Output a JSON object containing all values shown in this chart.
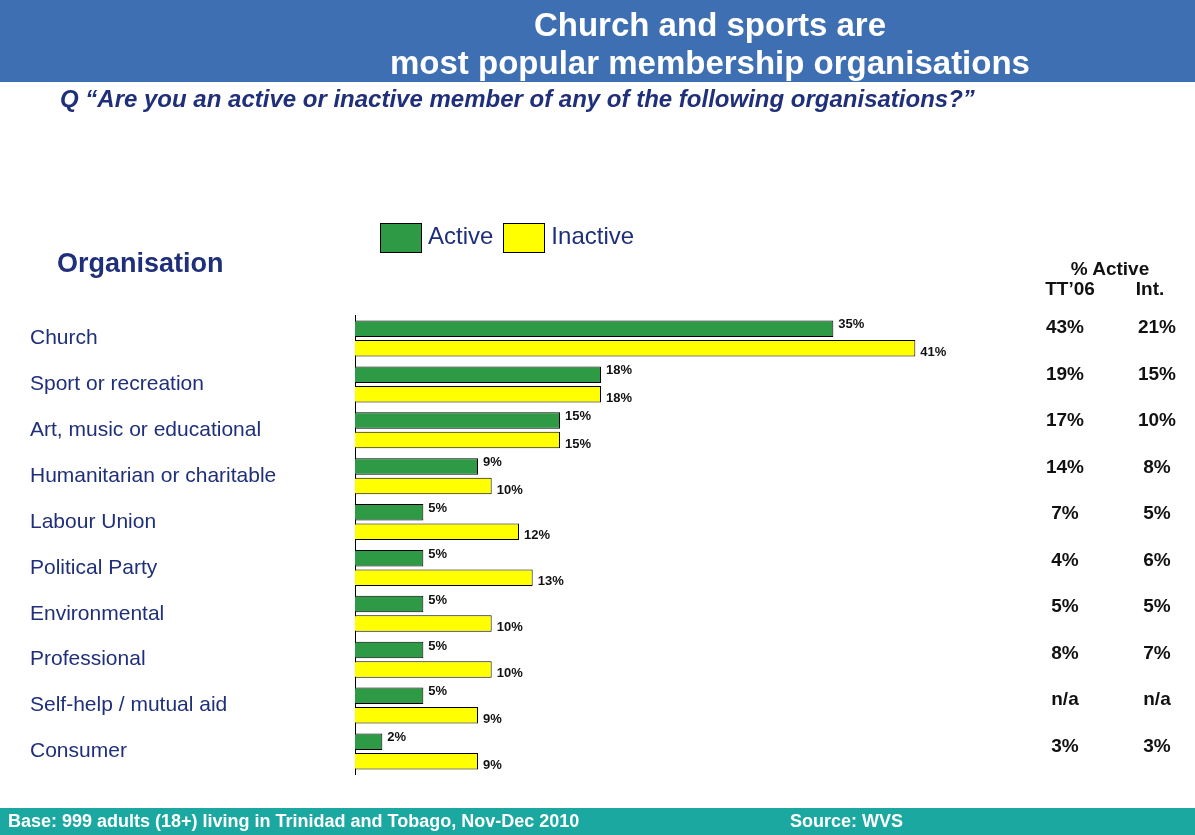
{
  "chart_data": {
    "type": "bar",
    "orientation": "horizontal",
    "title": "Church and sports are\nmost popular membership organisations",
    "subtitle": "Q   “Are you an active or inactive member of any of the following organisations?”",
    "ylabel": "Organisation",
    "categories": [
      "Church",
      "Sport or recreation",
      "Art, music or educational",
      "Humanitarian or charitable",
      "Labour Union",
      "Political Party",
      "Environmental",
      "Professional",
      "Self-help / mutual aid",
      "Consumer"
    ],
    "series": [
      {
        "name": "Active",
        "color": "#2e9a46",
        "values": [
          35,
          18,
          15,
          9,
          5,
          5,
          5,
          5,
          5,
          2
        ],
        "value_labels": [
          "35%",
          "18%",
          "15%",
          "9%",
          "5%",
          "5%",
          "5%",
          "5%",
          "5%",
          "2%"
        ]
      },
      {
        "name": "Inactive",
        "color": "#ffff00",
        "values": [
          41,
          18,
          15,
          10,
          12,
          13,
          10,
          10,
          9,
          9
        ],
        "value_labels": [
          "41%",
          "18%",
          "15%",
          "10%",
          "12%",
          "13%",
          "10%",
          "10%",
          "9%",
          "9%"
        ]
      }
    ],
    "legend": "top",
    "annotations": [
      "% Active",
      "TT’06",
      "Int.",
      "43%",
      "21%",
      "19%",
      "15%",
      "17%",
      "10%",
      "14%",
      "8%",
      "7%",
      "5%",
      "4%",
      "6%",
      "5%",
      "5%",
      "8%",
      "7%",
      "n/a",
      "n/a",
      "3%",
      "3%",
      "Base: 999 adults (18+) living in Trinidad and Tobago, Nov-Dec 2010",
      "Source: WVS"
    ]
  }
}
